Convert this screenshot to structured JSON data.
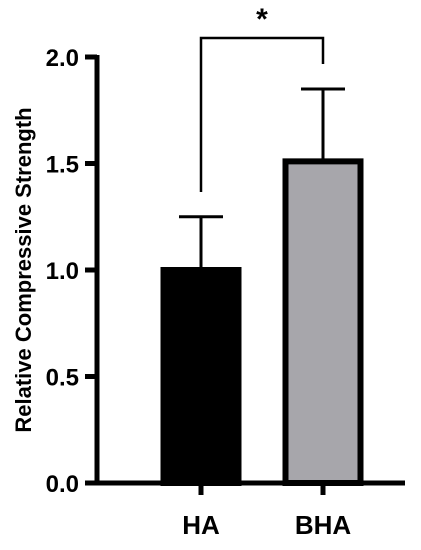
{
  "chart_data": {
    "type": "bar",
    "categories": [
      "HA",
      "BHA"
    ],
    "values": [
      1.0,
      1.51
    ],
    "errors": [
      0.25,
      0.34
    ],
    "colors": [
      "#000000",
      "#a7a6ab"
    ],
    "edge_color": "#000000",
    "ylabel": "Relative Compressive Strength",
    "xlabel": "",
    "ylim": [
      0,
      2.0
    ],
    "yticks": [
      0.0,
      0.5,
      1.0,
      1.5,
      2.0
    ],
    "ytick_labels": [
      "0.0",
      "0.5",
      "1.0",
      "1.5",
      "2.0"
    ],
    "significance": {
      "between": [
        "HA",
        "BHA"
      ],
      "label": "*"
    },
    "grid": false
  }
}
